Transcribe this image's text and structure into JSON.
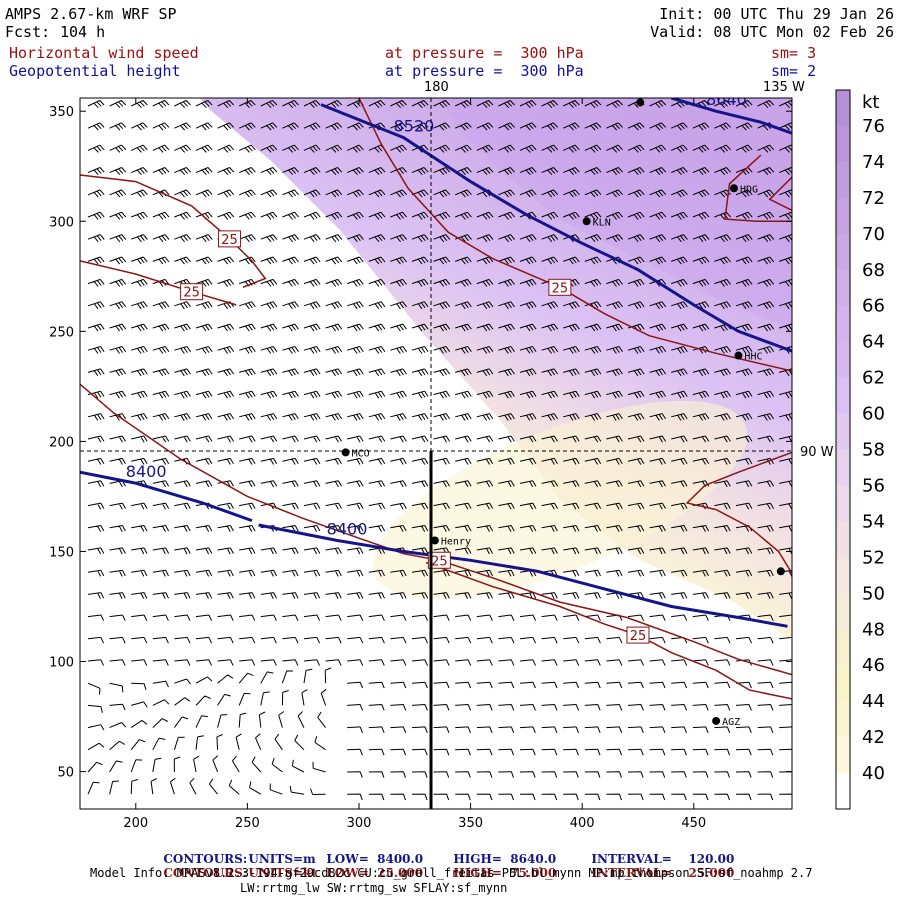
{
  "header": {
    "model": "AMPS 2.67-km WRF SP",
    "forecast_label": "Fcst:",
    "forecast_value": "104 h",
    "init": "Init: 00 UTC Thu 29 Jan 26",
    "valid": "Valid: 08 UTC Mon 02 Feb 26",
    "field1_name": "Horizontal wind speed",
    "field1_level": "at pressure =  300 hPa",
    "field1_smooth": "sm= 3",
    "field2_name": "Geopotential height",
    "field2_level": "at pressure =  300 hPa",
    "field2_smooth": "sm= 2"
  },
  "map_labels": {
    "lon_180": "180",
    "lon_135w": "135 W",
    "lon_90w": "90 W",
    "stations": [
      {
        "name": "HDG",
        "x": 468,
        "y": 315
      },
      {
        "name": "KLN",
        "x": 402,
        "y": 300
      },
      {
        "name": "HHC",
        "x": 470,
        "y": 239
      },
      {
        "name": "MCO",
        "x": 294,
        "y": 195
      },
      {
        "name": "Henry",
        "x": 334,
        "y": 155
      },
      {
        "name": "AGZ",
        "x": 460,
        "y": 73
      },
      {
        "name": "",
        "x": 426,
        "y": 354
      },
      {
        "name": "",
        "x": 489,
        "y": 141
      }
    ],
    "cross_section": {
      "x": 334,
      "y_from": 33,
      "y_to": 195
    }
  },
  "chart_data": {
    "type": "heatmap",
    "title": "Horizontal wind speed at 300 hPa (shaded, kt) and Geopotential height at 300 hPa (contours, m)",
    "x_range": [
      175,
      494
    ],
    "y_range": [
      33,
      356
    ],
    "x_ticks": [
      "200",
      "250",
      "300",
      "350",
      "400",
      "450"
    ],
    "x_tick_values": [
      200,
      250,
      300,
      350,
      400,
      450
    ],
    "y_ticks": [
      "50",
      "100",
      "150",
      "200",
      "250",
      "300",
      "350"
    ],
    "y_tick_values": [
      50,
      100,
      150,
      200,
      250,
      300,
      350
    ],
    "colorbar": {
      "unit": "kt",
      "labels": [
        "76",
        "74",
        "72",
        "70",
        "68",
        "66",
        "64",
        "62",
        "60",
        "58",
        "56",
        "54",
        "52",
        "50",
        "48",
        "46",
        "44",
        "42",
        "40"
      ],
      "values": [
        76,
        74,
        72,
        70,
        68,
        66,
        64,
        62,
        60,
        58,
        56,
        54,
        52,
        50,
        48,
        46,
        44,
        42,
        40
      ],
      "colors": [
        "#b590d6",
        "#bb96da",
        "#c19cde",
        "#c7a2e2",
        "#cba8e6",
        "#cfaeeb",
        "#d2b4f0",
        "#d6b9f3",
        "#dbc0f5",
        "#e2c9f2",
        "#e8d2ee",
        "#edd9ea",
        "#f1e0e5",
        "#f4e6e0",
        "#f6ecda",
        "#f8efcf",
        "#faf2c8",
        "#fbf5cf",
        "#fbf8dc",
        "#ffffff"
      ]
    },
    "height_contours": [
      {
        "label": "8400",
        "points": [
          [
            175,
            186
          ],
          [
            200,
            181
          ],
          [
            230,
            172
          ],
          [
            252,
            164
          ]
        ]
      },
      {
        "label": "8400",
        "points": [
          [
            255,
            162
          ],
          [
            290,
            155
          ],
          [
            320,
            150
          ],
          [
            350,
            146
          ],
          [
            380,
            141
          ],
          [
            410,
            133
          ],
          [
            440,
            125
          ],
          [
            470,
            120
          ],
          [
            492,
            116
          ]
        ]
      },
      {
        "label": "8520",
        "points": [
          [
            283,
            353
          ],
          [
            320,
            338
          ],
          [
            350,
            318
          ],
          [
            375,
            303
          ],
          [
            400,
            290
          ],
          [
            425,
            278
          ],
          [
            450,
            262
          ],
          [
            470,
            250
          ],
          [
            494,
            241
          ]
        ]
      },
      {
        "label": "8640",
        "points": [
          [
            440,
            356
          ],
          [
            460,
            350
          ],
          [
            480,
            345
          ],
          [
            494,
            340
          ]
        ]
      }
    ],
    "speed_contours": [
      {
        "label": "25",
        "points": [
          [
            175,
            321
          ],
          [
            200,
            318
          ],
          [
            225,
            307
          ],
          [
            242,
            292
          ],
          [
            252,
            282
          ],
          [
            258,
            274
          ],
          [
            248,
            270
          ]
        ]
      },
      {
        "label": "25",
        "points": [
          [
            175,
            282
          ],
          [
            200,
            276
          ],
          [
            225,
            268
          ],
          [
            245,
            262
          ]
        ]
      },
      {
        "label": "25",
        "points": [
          [
            175,
            226
          ],
          [
            190,
            213
          ],
          [
            220,
            192
          ],
          [
            250,
            175
          ],
          [
            275,
            165
          ],
          [
            300,
            156
          ],
          [
            320,
            149
          ],
          [
            336,
            146
          ],
          [
            360,
            138
          ],
          [
            390,
            127
          ],
          [
            420,
            120
          ],
          [
            450,
            109
          ],
          [
            470,
            101
          ],
          [
            494,
            94
          ]
        ]
      },
      {
        "label": "25",
        "points": [
          [
            300,
            356
          ],
          [
            310,
            335
          ],
          [
            322,
            315
          ],
          [
            340,
            295
          ],
          [
            360,
            283
          ],
          [
            390,
            270
          ],
          [
            410,
            258
          ],
          [
            430,
            248
          ],
          [
            460,
            240
          ],
          [
            494,
            232
          ]
        ]
      },
      {
        "label": "25",
        "points": [
          [
            330,
            145
          ],
          [
            360,
            134
          ],
          [
            390,
            125
          ],
          [
            410,
            117
          ],
          [
            425,
            112
          ],
          [
            440,
            104
          ],
          [
            460,
            96
          ],
          [
            475,
            87
          ],
          [
            494,
            83
          ]
        ]
      },
      {
        "label": "",
        "points": [
          [
            494,
            195
          ],
          [
            470,
            186
          ],
          [
            455,
            180
          ],
          [
            447,
            172
          ],
          [
            460,
            169
          ],
          [
            475,
            161
          ],
          [
            488,
            150
          ],
          [
            494,
            140
          ]
        ]
      },
      {
        "label": "",
        "points": [
          [
            480,
            330
          ],
          [
            466,
            317
          ],
          [
            464,
            301
          ],
          [
            478,
            300
          ],
          [
            494,
            300
          ]
        ]
      },
      {
        "label": "",
        "points": [
          [
            494,
            320
          ],
          [
            484,
            310
          ],
          [
            494,
            305
          ]
        ]
      }
    ],
    "contour_info": {
      "height_units": "m",
      "height_low": "8400.0",
      "height_high": "8640.0",
      "height_interval": "120.00",
      "speed_units": "kt",
      "speed_low": "25.000",
      "speed_high": "75.000",
      "speed_interval": "25.000"
    }
  },
  "footer": {
    "line1_contours": "CONTOURS:",
    "line1_units": "UNITS=m",
    "line1_low": "LOW=  8400.0",
    "line1_high": "HIGH=  8640.0",
    "line1_interval": "INTERVAL=    120.00",
    "line2_contours": "CONTOURS:",
    "line2_units": "UNITS=kt",
    "line2_low": "LOW=  25.000",
    "line2_high": "HIGH=  75.000",
    "line2_interval": "INTERVAL=    25.000",
    "model_info": "Model Info: MPASv8.2.3-194-gf29cd82c CU:cu_grell_freitas PBL:bl_mynn MP:mp_thompson SF:sf_noahmp 2.7",
    "model_info2": "LW:rrtmg_lw SW:rrtmg_sw SFLAY:sf_mynn"
  },
  "colors": {
    "height_contour": "#14148c",
    "speed_contour": "#8c1414",
    "barb": "#000000"
  }
}
